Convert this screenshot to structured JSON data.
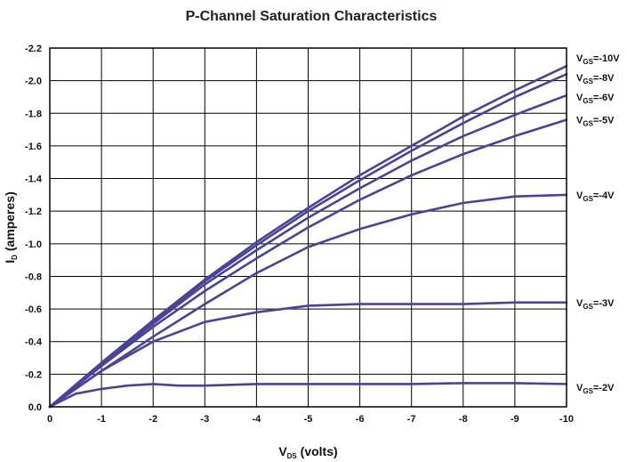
{
  "chart_data": {
    "type": "line",
    "title": "P-Channel Saturation Characteristics",
    "xlabel": {
      "main": "V",
      "sub": "DS",
      "rest": " (volts)"
    },
    "ylabel": {
      "main": "I",
      "sub": "D",
      "rest": " (amperes)"
    },
    "xlim": [
      0,
      -10
    ],
    "ylim": [
      0,
      -2.2
    ],
    "x_ticks": [
      0,
      -1,
      -2,
      -3,
      -4,
      -5,
      -6,
      -7,
      -8,
      -9,
      -10
    ],
    "x_tick_labels": [
      "0",
      "-1",
      "-2",
      "-3",
      "-4",
      "-5",
      "-6",
      "-7",
      "-8",
      "-9",
      "-10"
    ],
    "y_ticks": [
      0,
      -0.2,
      -0.4,
      -0.6,
      -0.8,
      -1.0,
      -1.2,
      -1.4,
      -1.6,
      -1.8,
      -2.0,
      -2.2
    ],
    "y_tick_labels": [
      "0.0",
      "-0.2",
      "-0.4",
      "-0.6",
      "-0.8",
      "-1.0",
      "-1.2",
      "-1.4",
      "-1.6",
      "-1.8",
      "-2.0",
      "-2.2"
    ],
    "grid": true,
    "line_color": "#4a4396",
    "series": [
      {
        "label_main": "V",
        "label_sub": "GS",
        "label_rest": "=-10V",
        "x": [
          0,
          -1,
          -2,
          -3,
          -4,
          -5,
          -6,
          -7,
          -8,
          -9,
          -10
        ],
        "y": [
          0,
          -0.27,
          -0.53,
          -0.78,
          -1.01,
          -1.22,
          -1.42,
          -1.6,
          -1.78,
          -1.94,
          -2.09
        ]
      },
      {
        "label_main": "V",
        "label_sub": "GS",
        "label_rest": "=-8V",
        "x": [
          0,
          -1,
          -2,
          -3,
          -4,
          -5,
          -6,
          -7,
          -8,
          -9,
          -10
        ],
        "y": [
          0,
          -0.26,
          -0.52,
          -0.77,
          -0.99,
          -1.2,
          -1.39,
          -1.57,
          -1.74,
          -1.9,
          -2.04
        ]
      },
      {
        "label_main": "V",
        "label_sub": "GS",
        "label_rest": "=-6V",
        "x": [
          0,
          -1,
          -2,
          -3,
          -4,
          -5,
          -6,
          -7,
          -8,
          -9,
          -10
        ],
        "y": [
          0,
          -0.26,
          -0.51,
          -0.75,
          -0.96,
          -1.16,
          -1.34,
          -1.51,
          -1.66,
          -1.79,
          -1.91
        ]
      },
      {
        "label_main": "V",
        "label_sub": "GS",
        "label_rest": "=-5V",
        "x": [
          0,
          -1,
          -2,
          -3,
          -4,
          -5,
          -6,
          -7,
          -8,
          -9,
          -10
        ],
        "y": [
          0,
          -0.25,
          -0.49,
          -0.71,
          -0.91,
          -1.1,
          -1.27,
          -1.42,
          -1.55,
          -1.66,
          -1.76
        ]
      },
      {
        "label_main": "V",
        "label_sub": "GS",
        "label_rest": "=-4V",
        "x": [
          0,
          -0.5,
          -1,
          -2,
          -3,
          -4,
          -5,
          -6,
          -7,
          -8,
          -9,
          -10
        ],
        "y": [
          0,
          -0.11,
          -0.22,
          -0.43,
          -0.63,
          -0.82,
          -0.98,
          -1.09,
          -1.18,
          -1.25,
          -1.29,
          -1.3
        ]
      },
      {
        "label_main": "V",
        "label_sub": "GS",
        "label_rest": "=-3V",
        "x": [
          0,
          -1,
          -2,
          -3,
          -4,
          -5,
          -6,
          -7,
          -8,
          -9,
          -10
        ],
        "y": [
          0,
          -0.22,
          -0.4,
          -0.52,
          -0.58,
          -0.62,
          -0.63,
          -0.63,
          -0.63,
          -0.64,
          -0.64
        ]
      },
      {
        "label_main": "V",
        "label_sub": "GS",
        "label_rest": "=-2V",
        "x": [
          0,
          -0.5,
          -1,
          -1.5,
          -2,
          -2.5,
          -3,
          -4,
          -5,
          -6,
          -7,
          -8,
          -9,
          -10
        ],
        "y": [
          0,
          -0.08,
          -0.11,
          -0.13,
          -0.14,
          -0.13,
          -0.13,
          -0.14,
          -0.14,
          -0.14,
          -0.14,
          -0.145,
          -0.145,
          -0.14
        ]
      }
    ],
    "label_positions_y": [
      -2.14,
      -2.02,
      -1.9,
      -1.76,
      -1.3,
      -0.64,
      -0.12
    ]
  }
}
